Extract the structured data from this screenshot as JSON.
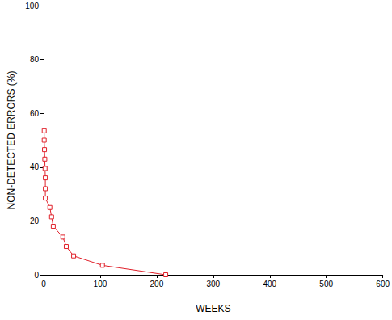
{
  "chart_data": {
    "type": "line",
    "x_label": "WEEKS",
    "y_label": "NON-DETECTED ERRORS (%)",
    "x": [
      1,
      1,
      1.5,
      2,
      2.5,
      3,
      3,
      3,
      11,
      14,
      17,
      34,
      40,
      53,
      104,
      216
    ],
    "values": [
      53.5,
      50,
      46.5,
      43,
      39.5,
      36,
      32,
      28.5,
      25,
      21.5,
      18,
      14,
      10.5,
      7,
      3.5,
      0
    ],
    "color": "#e0202a",
    "marker": "square",
    "xlim": [
      0,
      600
    ],
    "xticks": [
      0,
      100,
      200,
      300,
      400,
      500,
      600
    ],
    "ylim": [
      0,
      100
    ],
    "yticks": [
      0,
      20,
      40,
      60,
      80,
      100
    ],
    "grid": false
  }
}
